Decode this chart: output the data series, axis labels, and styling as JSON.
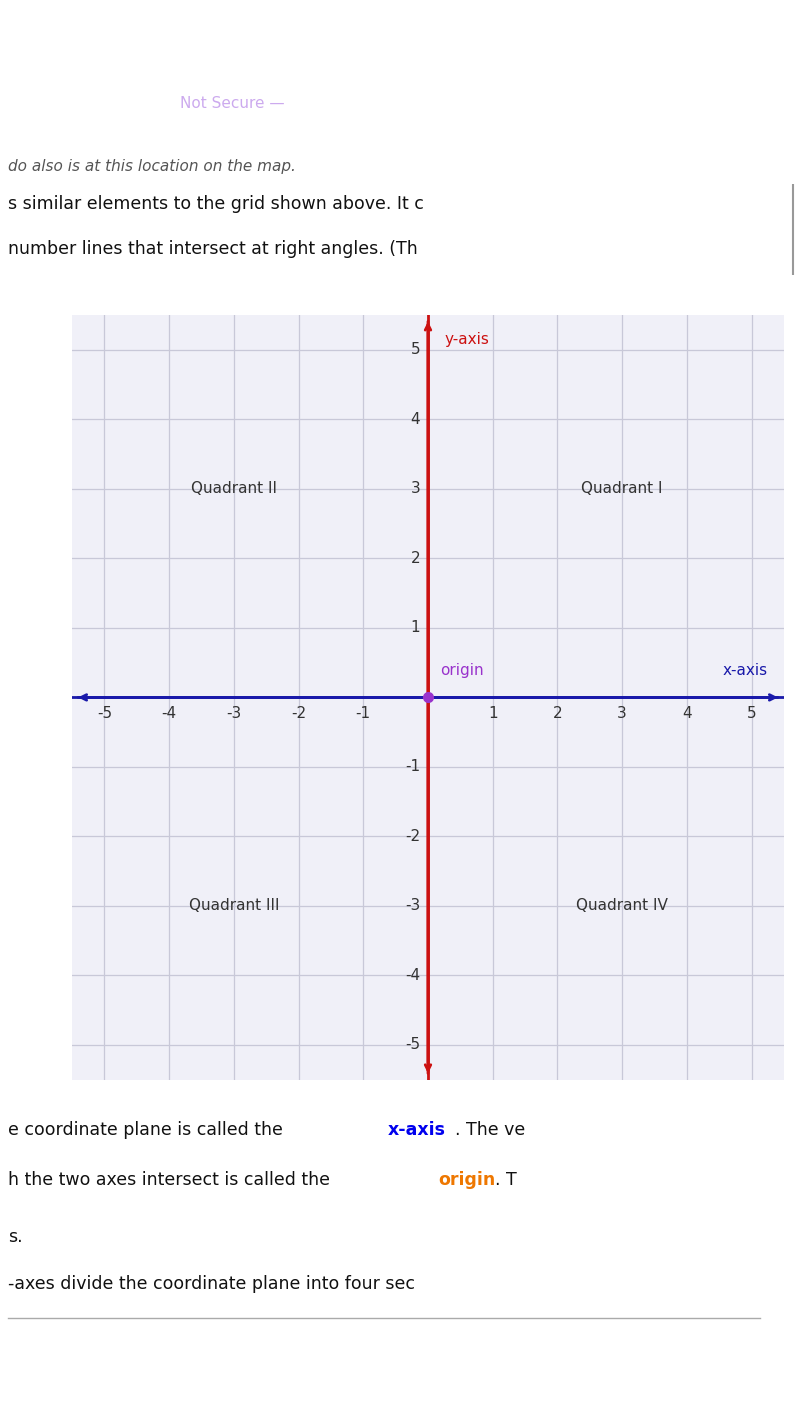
{
  "fig_width": 8.0,
  "fig_height": 14.23,
  "bg_color": "#ffffff",
  "purple_bar_color": "#7B2D9E",
  "grid_bg_color": "#f0f0f8",
  "grid_color": "#c8c8d8",
  "x_axis_color": "#1a1aaa",
  "y_axis_color": "#cc1111",
  "origin_color": "#9933cc",
  "quadrant_label_color": "#333333",
  "y_axis_label_color": "#cc1111",
  "x_axis_label_color": "#1a1aaa",
  "origin_label_color": "#9933cc",
  "xaxis_highlight_color": "#0000ee",
  "origin_highlight_color": "#ee7700",
  "xlim": [
    -5.5,
    5.5
  ],
  "ylim": [
    -5.5,
    5.5
  ],
  "xticks": [
    -5,
    -4,
    -3,
    -2,
    -1,
    0,
    1,
    2,
    3,
    4,
    5
  ],
  "yticks": [
    -5,
    -4,
    -3,
    -2,
    -1,
    0,
    1,
    2,
    3,
    4,
    5
  ],
  "quadrant_labels": [
    "Quadrant I",
    "Quadrant II",
    "Quadrant III",
    "Quadrant IV"
  ],
  "quadrant_positions": [
    [
      3.0,
      3.0
    ],
    [
      -3.0,
      3.0
    ],
    [
      -3.0,
      -3.0
    ],
    [
      3.0,
      -3.0
    ]
  ],
  "y_axis_label": "y-axis",
  "x_axis_label": "x-axis",
  "origin_label": "origin",
  "status_bg": "#7B2D9E",
  "nav_bg": "#7B2D9E",
  "bottom_nav_bg": "#7B2D9E",
  "tick_fontsize": 11,
  "quadrant_fontsize": 11,
  "label_fontsize": 11
}
